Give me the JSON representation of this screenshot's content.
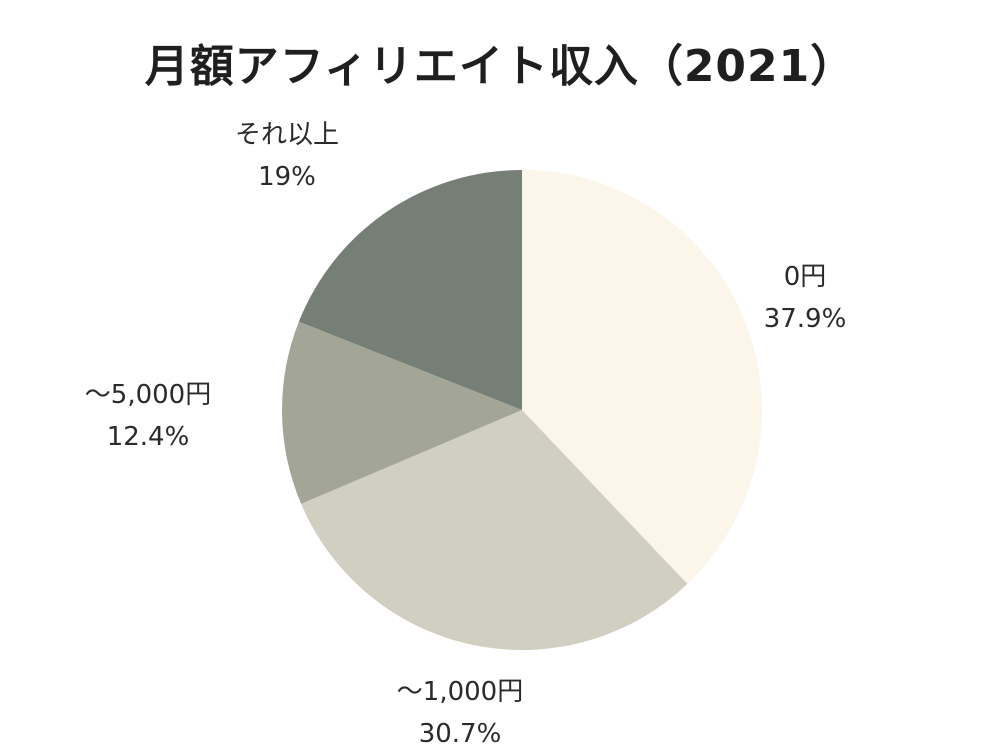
{
  "chart_data": {
    "type": "pie",
    "title": "月額アフィリエイト収入（2021）",
    "slices": [
      {
        "label": "0円",
        "value": 37.9,
        "display": "37.9%",
        "color": "#fcf5ea"
      },
      {
        "label": "～1,000円",
        "value": 30.7,
        "display": "30.7%",
        "color": "#d0cfc1"
      },
      {
        "label": "～5,000円",
        "value": 12.4,
        "display": "12.4%",
        "color": "#a3a697"
      },
      {
        "label": "それ以上",
        "value": 19.0,
        "display": "19%",
        "color": "#767f75"
      }
    ],
    "start_angle": "12 o'clock",
    "direction": "clockwise",
    "legend": "none"
  }
}
